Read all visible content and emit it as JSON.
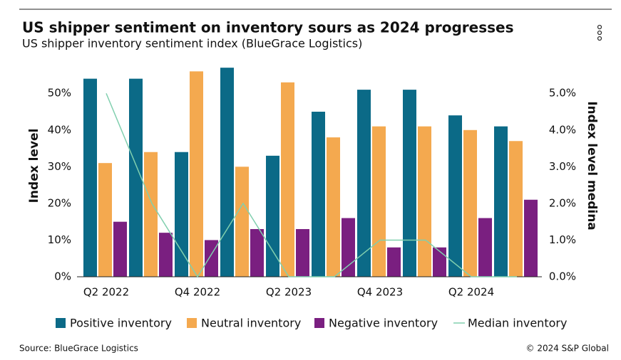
{
  "chart_data": {
    "type": "bar",
    "title": "US shipper sentiment on inventory sours as 2024 progresses",
    "subtitle": "US shipper inventory sentiment index (BlueGrace Logistics)",
    "y_label": "Index level",
    "y2_label": "Index level medina",
    "source": "Source: BlueGrace Logistics",
    "copyright": "© 2024 S&P Global",
    "categories": [
      "Q2 2022",
      null,
      "Q4 2022",
      null,
      "Q2 2023",
      null,
      "Q4 2023",
      null,
      "Q2 2024",
      null
    ],
    "series": [
      {
        "name": "Positive inventory",
        "color": "#0b6a87",
        "type": "bar",
        "values": [
          54,
          54,
          34,
          57,
          33,
          45,
          51,
          51,
          44,
          41
        ]
      },
      {
        "name": "Neutral inventory",
        "color": "#f4a94f",
        "type": "bar",
        "values": [
          31,
          34,
          56,
          30,
          53,
          38,
          41,
          41,
          40,
          37
        ]
      },
      {
        "name": "Negative inventory",
        "color": "#7a1f80",
        "type": "bar",
        "values": [
          15,
          12,
          10,
          13,
          13,
          16,
          8,
          8,
          16,
          21
        ]
      },
      {
        "name": "Median inventory",
        "color": "#80cfae",
        "type": "line",
        "axis": "y2",
        "values": [
          5.0,
          2.0,
          0,
          2.0,
          0,
          0,
          1.0,
          1.0,
          0,
          0
        ]
      }
    ],
    "ylim": [
      0,
      58
    ],
    "yticks": [
      {
        "value": 0,
        "label": "0%"
      },
      {
        "value": 10,
        "label": "10%"
      },
      {
        "value": 20,
        "label": "20%"
      },
      {
        "value": 30,
        "label": "30%"
      },
      {
        "value": 40,
        "label": "40%"
      },
      {
        "value": 50,
        "label": "50%"
      }
    ],
    "y2lim": [
      0,
      5.8
    ],
    "y2ticks": [
      {
        "value": 0,
        "label": "0.0%"
      },
      {
        "value": 1,
        "label": "1.0%"
      },
      {
        "value": 2,
        "label": "2.0%"
      },
      {
        "value": 3,
        "label": "3.0%"
      },
      {
        "value": 4,
        "label": "4.0%"
      },
      {
        "value": 5,
        "label": "5.0%"
      }
    ],
    "legend": "bottom"
  }
}
